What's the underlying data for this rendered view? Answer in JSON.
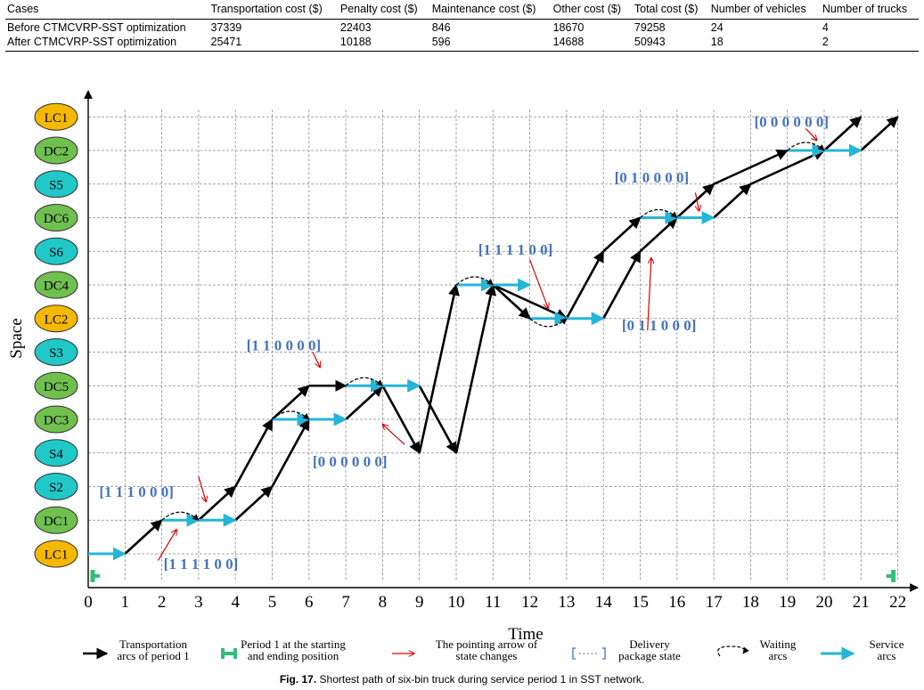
{
  "table": {
    "headers": [
      "Cases",
      "Transportation cost ($)",
      "Penalty cost ($)",
      "Maintenance cost ($)",
      "Other cost ($)",
      "Total cost ($)",
      "Number of vehicles",
      "Number of trucks"
    ],
    "rows": [
      [
        "Before CTMCVRP-SST optimization",
        "37339",
        "22403",
        "846",
        "18670",
        "79258",
        "24",
        "4"
      ],
      [
        "After CTMCVRP-SST optimization",
        "25471",
        "10188",
        "596",
        "14688",
        "50943",
        "18",
        "2"
      ]
    ]
  },
  "chart_data": {
    "type": "line",
    "xlabel": "Time",
    "ylabel": "Space",
    "x_ticks": [
      0,
      1,
      2,
      3,
      4,
      5,
      6,
      7,
      8,
      9,
      10,
      11,
      12,
      13,
      14,
      15,
      16,
      17,
      18,
      19,
      20,
      21,
      22
    ],
    "xlim": [
      0,
      22
    ],
    "nodes": [
      {
        "label": "LC1",
        "color": "#f5b800"
      },
      {
        "label": "DC1",
        "color": "#70c050"
      },
      {
        "label": "S2",
        "color": "#20c8c8"
      },
      {
        "label": "S4",
        "color": "#20c8c8"
      },
      {
        "label": "DC3",
        "color": "#70c050"
      },
      {
        "label": "DC5",
        "color": "#70c050"
      },
      {
        "label": "S3",
        "color": "#20c8c8"
      },
      {
        "label": "LC2",
        "color": "#f5b800"
      },
      {
        "label": "DC4",
        "color": "#70c050"
      },
      {
        "label": "S6",
        "color": "#20c8c8"
      },
      {
        "label": "DC6",
        "color": "#70c050"
      },
      {
        "label": "S5",
        "color": "#20c8c8"
      },
      {
        "label": "DC2",
        "color": "#70c050"
      },
      {
        "label": "LC1",
        "color": "#f5b800"
      }
    ],
    "series": [
      {
        "kind": "transport",
        "color": "#000000",
        "segments": [
          [
            [
              1,
              0
            ],
            [
              2,
              1
            ]
          ],
          [
            [
              3,
              1
            ],
            [
              4,
              2
            ]
          ],
          [
            [
              4,
              2
            ],
            [
              5,
              4
            ]
          ],
          [
            [
              5,
              4
            ],
            [
              6,
              5
            ]
          ],
          [
            [
              6,
              5
            ],
            [
              7,
              5
            ]
          ],
          [
            [
              7,
              5
            ],
            [
              8,
              5
            ]
          ],
          [
            [
              8,
              5
            ],
            [
              9,
              3
            ]
          ],
          [
            [
              9,
              3
            ],
            [
              10,
              8
            ]
          ],
          [
            [
              11,
              8
            ],
            [
              12,
              7
            ]
          ],
          [
            [
              12,
              7
            ],
            [
              13,
              7
            ]
          ],
          [
            [
              13,
              7
            ],
            [
              14,
              9
            ]
          ],
          [
            [
              14,
              9
            ],
            [
              15,
              10
            ]
          ],
          [
            [
              16,
              10
            ],
            [
              17,
              11
            ]
          ],
          [
            [
              17,
              11
            ],
            [
              19,
              12
            ]
          ],
          [
            [
              19,
              12
            ],
            [
              20,
              12
            ]
          ],
          [
            [
              20,
              12
            ],
            [
              21,
              13
            ]
          ],
          [
            [
              4,
              1
            ],
            [
              5,
              2
            ]
          ],
          [
            [
              5,
              2
            ],
            [
              6,
              4
            ]
          ],
          [
            [
              6,
              4
            ],
            [
              7,
              4
            ]
          ],
          [
            [
              7,
              4
            ],
            [
              8,
              5
            ]
          ],
          [
            [
              8,
              5
            ],
            [
              9,
              5
            ]
          ],
          [
            [
              9,
              5
            ],
            [
              10,
              3
            ]
          ],
          [
            [
              10,
              3
            ],
            [
              11,
              8
            ]
          ],
          [
            [
              11,
              8
            ],
            [
              13,
              7
            ]
          ],
          [
            [
              14,
              7
            ],
            [
              15,
              9
            ]
          ],
          [
            [
              15,
              9
            ],
            [
              16,
              10
            ]
          ],
          [
            [
              17,
              10
            ],
            [
              18,
              11
            ]
          ],
          [
            [
              18,
              11
            ],
            [
              20,
              12
            ]
          ],
          [
            [
              21,
              12
            ],
            [
              22,
              13
            ]
          ]
        ]
      },
      {
        "kind": "service",
        "color": "#25b5d8",
        "segments": [
          [
            [
              0,
              0
            ],
            [
              1,
              0
            ]
          ],
          [
            [
              2,
              1
            ],
            [
              3,
              1
            ]
          ],
          [
            [
              3,
              1
            ],
            [
              4,
              1
            ]
          ],
          [
            [
              5,
              4
            ],
            [
              6,
              4
            ]
          ],
          [
            [
              6,
              4
            ],
            [
              7,
              4
            ]
          ],
          [
            [
              7,
              5
            ],
            [
              8,
              5
            ]
          ],
          [
            [
              8,
              5
            ],
            [
              9,
              5
            ]
          ],
          [
            [
              10,
              8
            ],
            [
              11,
              8
            ]
          ],
          [
            [
              11,
              8
            ],
            [
              12,
              8
            ]
          ],
          [
            [
              12,
              7
            ],
            [
              13,
              7
            ]
          ],
          [
            [
              13,
              7
            ],
            [
              14,
              7
            ]
          ],
          [
            [
              15,
              10
            ],
            [
              16,
              10
            ]
          ],
          [
            [
              16,
              10
            ],
            [
              17,
              10
            ]
          ],
          [
            [
              19,
              12
            ],
            [
              20,
              12
            ]
          ],
          [
            [
              20,
              12
            ],
            [
              21,
              12
            ]
          ]
        ]
      },
      {
        "kind": "waiting",
        "points": [
          [
            2,
            1
          ],
          [
            5,
            4
          ],
          [
            7,
            5
          ],
          [
            10,
            8
          ],
          [
            12,
            7
          ],
          [
            15,
            10
          ],
          [
            19,
            12
          ]
        ]
      }
    ],
    "annotations": [
      {
        "text": "[1 1 1 1 0 0]",
        "x": 2.05,
        "y": -0.45
      },
      {
        "text": "[1 1 1 0 0 0]",
        "x": 0.3,
        "y": 1.7
      },
      {
        "text": "[0 0 0 0 0 0]",
        "x": 6.1,
        "y": 2.6
      },
      {
        "text": "[1 1 0 0 0 0]",
        "x": 4.3,
        "y": 6.05
      },
      {
        "text": "[1 1 1 1 0 0]",
        "x": 10.6,
        "y": 8.9
      },
      {
        "text": "[0 1 1 0 0 0]",
        "x": 14.5,
        "y": 6.65
      },
      {
        "text": "[0 1 0 0 0 0]",
        "x": 14.3,
        "y": 11.05
      },
      {
        "text": "[0 0 0 0 0 0]",
        "x": 18.1,
        "y": 12.7
      }
    ],
    "legend": {
      "placement": "bottom",
      "items": [
        {
          "name": "Transportation arcs of period 1",
          "icon": "black-arrow-icon"
        },
        {
          "name": "Period 1 at the starting and ending position",
          "icon": "period-marker-icon"
        },
        {
          "name": "The pointing arrow of state changes",
          "icon": "red-arrow-icon"
        },
        {
          "name": "Delivery package state",
          "icon": "bracket-icon"
        },
        {
          "name": "Waiting arcs",
          "icon": "waiting-arc-icon"
        },
        {
          "name": "Service arcs",
          "icon": "cyan-arrow-icon"
        }
      ]
    }
  },
  "caption": {
    "label": "Fig. 17.",
    "text": "Shortest path of six-bin truck during service period 1 in SST network."
  }
}
